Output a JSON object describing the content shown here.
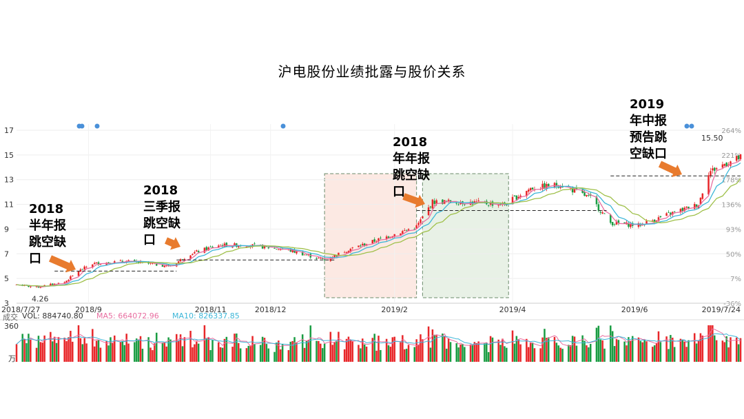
{
  "title": "沪电股份业绩批露与股价关系",
  "colors": {
    "up": "#e8272a",
    "down": "#1a9d43",
    "ma5": "#e86ea0",
    "ma10": "#3cb6d8",
    "ma20": "#9fc04a",
    "dot": "#4a90d9",
    "arrow": "#e87b2e",
    "zone_red": "#fce9e3",
    "zone_green": "#e8f1e6"
  },
  "annotations": [
    {
      "lines": [
        "2018",
        "半年报",
        "跳空缺",
        "口"
      ]
    },
    {
      "lines": [
        "2018",
        "三季报",
        "跳空缺",
        "口"
      ]
    },
    {
      "lines": [
        "2018",
        "年年报",
        "跳空缺",
        "口"
      ]
    },
    {
      "lines": [
        "2019",
        "年中报",
        "预告跳",
        "空缺口"
      ]
    }
  ],
  "volume": {
    "label_prefix": "成交",
    "vol": "VOL: 884740.80",
    "ma5": "MA5: 664072.96",
    "ma10": "MA10: 826337.85",
    "axis_top": "360",
    "axis_unit": "万"
  },
  "chart_data": {
    "type": "candlestick",
    "title": "沪电股份业绩批露与股价关系",
    "y_ticks": [
      3,
      5,
      7,
      9,
      11,
      13,
      15,
      17
    ],
    "ylim": [
      3,
      17.5
    ],
    "right_ticks": [
      "264%",
      "221%",
      "178%",
      "136%",
      "93%",
      "50%",
      "7%",
      "-36%"
    ],
    "x_ticks": [
      "2018/7/27",
      "2018/9",
      "2018/11",
      "2018/12",
      "2019/2",
      "2019/4",
      "2019/6",
      "2019/7/24"
    ],
    "price_labels": [
      {
        "text": "4.26",
        "value": 4.26
      },
      {
        "text": "15.50",
        "value": 15.5
      }
    ],
    "anchors": [
      {
        "date": "2018/7/27",
        "price": 4.5
      },
      {
        "date": "2018/8/6",
        "price": 4.3
      },
      {
        "date": "2018/8/20",
        "price": 4.7
      },
      {
        "date": "2018/8/27",
        "price": 5.6
      },
      {
        "date": "2018/9/3",
        "price": 6.2
      },
      {
        "date": "2018/9/20",
        "price": 6.4
      },
      {
        "date": "2018/10/12",
        "price": 6.0
      },
      {
        "date": "2018/10/22",
        "price": 7.0
      },
      {
        "date": "2018/11/5",
        "price": 7.7
      },
      {
        "date": "2018/11/20",
        "price": 7.7
      },
      {
        "date": "2018/12/10",
        "price": 7.3
      },
      {
        "date": "2018/12/28",
        "price": 6.5
      },
      {
        "date": "2019/1/10",
        "price": 7.4
      },
      {
        "date": "2019/1/25",
        "price": 8.2
      },
      {
        "date": "2019/2/12",
        "price": 9.2
      },
      {
        "date": "2019/2/20",
        "price": 11.2
      },
      {
        "date": "2019/3/5",
        "price": 11.2
      },
      {
        "date": "2019/3/28",
        "price": 11.0
      },
      {
        "date": "2019/4/10",
        "price": 12.3
      },
      {
        "date": "2019/4/25",
        "price": 12.6
      },
      {
        "date": "2019/5/10",
        "price": 11.5
      },
      {
        "date": "2019/5/20",
        "price": 9.5
      },
      {
        "date": "2019/6/3",
        "price": 9.3
      },
      {
        "date": "2019/6/20",
        "price": 10.3
      },
      {
        "date": "2019/7/3",
        "price": 11.0
      },
      {
        "date": "2019/7/8",
        "price": 13.6
      },
      {
        "date": "2019/7/15",
        "price": 14.2
      },
      {
        "date": "2019/7/24",
        "price": 14.8
      }
    ]
  }
}
